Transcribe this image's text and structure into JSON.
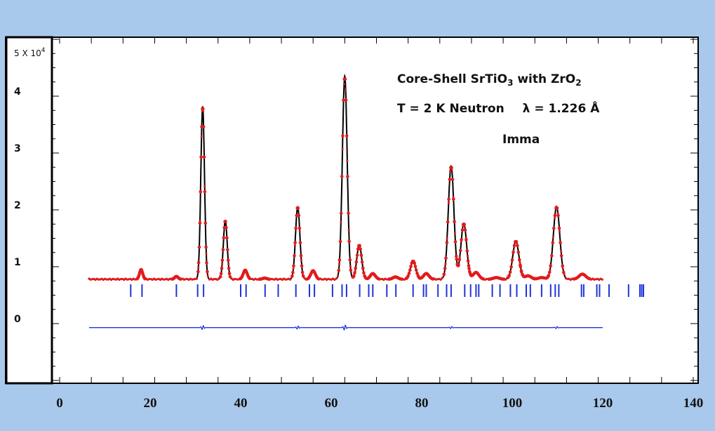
{
  "chart_data": {
    "type": "line",
    "xlim": [
      0,
      140
    ],
    "ylim": [
      -1.0,
      5.0
    ],
    "y_scale_label": "5 X 10",
    "y_scale_exponent": "4",
    "x_ticks": [
      "0",
      "20",
      "40",
      "60",
      "80",
      "100",
      "120",
      "140"
    ],
    "y_ticks": [
      {
        "value": 0,
        "label": "0"
      },
      {
        "value": 1,
        "label": "1"
      },
      {
        "value": 2,
        "label": "2"
      },
      {
        "value": 3,
        "label": "3"
      },
      {
        "value": 4,
        "label": "4"
      }
    ],
    "annotations": {
      "title_main": "Core-Shell SrTiO",
      "title_sub": "3",
      "title_mid": " with ZrO",
      "title_sub2": "2",
      "conditions_left": "T = 2 K  Neutron",
      "lambda_symbol": "λ",
      "lambda_value": " = 1.226 Å",
      "space_group": "Imma"
    },
    "background_level": 0.78,
    "x_start": 6.5,
    "x_end": 120,
    "peaks": [
      {
        "x": 18.0,
        "y": 0.95
      },
      {
        "x": 25.8,
        "y": 0.83
      },
      {
        "x": 31.6,
        "y": 3.82
      },
      {
        "x": 36.6,
        "y": 1.81
      },
      {
        "x": 41.0,
        "y": 0.94
      },
      {
        "x": 45.3,
        "y": 0.8
      },
      {
        "x": 52.6,
        "y": 2.05
      },
      {
        "x": 56.0,
        "y": 0.93
      },
      {
        "x": 63.0,
        "y": 4.35
      },
      {
        "x": 66.2,
        "y": 1.38
      },
      {
        "x": 69.2,
        "y": 0.88
      },
      {
        "x": 74.2,
        "y": 0.82
      },
      {
        "x": 78.1,
        "y": 1.1
      },
      {
        "x": 81.0,
        "y": 0.88
      },
      {
        "x": 86.5,
        "y": 2.77
      },
      {
        "x": 89.3,
        "y": 1.76
      },
      {
        "x": 92.0,
        "y": 0.9
      },
      {
        "x": 96.5,
        "y": 0.81
      },
      {
        "x": 100.8,
        "y": 1.45
      },
      {
        "x": 103.5,
        "y": 0.84
      },
      {
        "x": 106.5,
        "y": 0.81
      },
      {
        "x": 109.8,
        "y": 2.05
      },
      {
        "x": 115.5,
        "y": 0.87
      }
    ],
    "reflection_ticks_x": [
      15.7,
      18.2,
      25.8,
      30.5,
      31.8,
      40.0,
      41.2,
      45.4,
      48.3,
      52.2,
      55.2,
      56.3,
      60.3,
      62.4,
      63.4,
      66.3,
      68.3,
      69.2,
      72.3,
      74.3,
      78.1,
      80.4,
      81.0,
      83.6,
      85.5,
      86.5,
      89.5,
      90.8,
      92.0,
      92.6,
      95.6,
      97.3,
      99.6,
      101.0,
      103.1,
      104.0,
      106.5,
      108.5,
      109.5,
      110.3,
      115.3,
      115.8,
      118.7,
      119.3,
      121.4,
      125.7,
      128.2,
      128.6,
      129.0
    ],
    "difference_baseline": -0.07,
    "difference_blips": [
      {
        "x": 31.6,
        "amp": 0.04
      },
      {
        "x": 52.6,
        "amp": 0.03
      },
      {
        "x": 63.0,
        "amp": 0.05
      },
      {
        "x": 86.5,
        "amp": 0.02
      },
      {
        "x": 109.8,
        "amp": 0.02
      }
    ],
    "series": [
      {
        "kind": "observed",
        "color": "#e31a1c"
      },
      {
        "kind": "calculated",
        "color": "#000000"
      },
      {
        "kind": "bragg_positions",
        "color": "#1f35d6"
      },
      {
        "kind": "difference",
        "color": "#1f35d6"
      }
    ]
  }
}
